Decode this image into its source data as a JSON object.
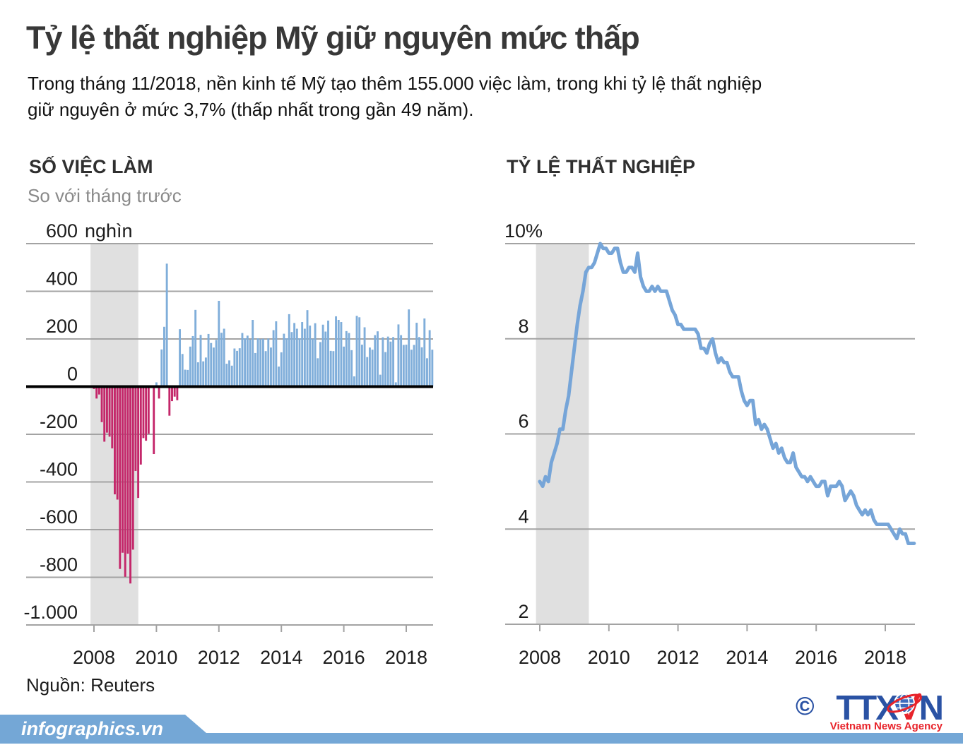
{
  "page": {
    "title": "Tỷ lệ thất nghiệp Mỹ giữ nguyên mức thấp",
    "subtitle_lines": [
      "Trong tháng 11/2018, nền kinh tế Mỹ tạo thêm 155.000 việc làm, trong khi tỷ lệ thất nghiệp",
      "giữ nguyên ở mức 3,7% (thấp nhất trong gần 49 năm)."
    ],
    "source": "Nguồn: Reuters"
  },
  "footer": {
    "watermark": "infographics.vn",
    "banner_color": "#74a7d6"
  },
  "branding": {
    "copyright_symbol": "©",
    "logo_part_blue_left": "TTX",
    "logo_part_red": "V",
    "logo_part_blue_right": "N",
    "tagline": "Vietnam News Agency",
    "logo_blue": "#2a52a4",
    "logo_red": "#e8232a"
  },
  "chart_data": [
    {
      "type": "bar",
      "title": "SỐ VIỆC LÀM",
      "subtitle": "So với tháng trước",
      "y_unit": "nghìn",
      "x_start": "2008-01",
      "x_end": "2018-11",
      "x_ticks": [
        2008,
        2010,
        2012,
        2014,
        2016,
        2018
      ],
      "y_ticks": [
        600,
        400,
        200,
        0,
        -200,
        -400,
        -600,
        -800,
        -1000
      ],
      "y_tick_labels": [
        "600",
        "400",
        "200",
        "0",
        "-200",
        "-400",
        "-600",
        "-800",
        "-1.000"
      ],
      "ylim": [
        -1000,
        600
      ],
      "grid": true,
      "recession_band_years": [
        2007.89,
        2009.42
      ],
      "colors": {
        "positive": "#80aeda",
        "negative": "#c4276a",
        "zero_line": "#000000",
        "band": "#e0e0e0",
        "grid": "#a3a3a3"
      },
      "values_thousands": [
        -10,
        -50,
        -33,
        -149,
        -231,
        -193,
        -210,
        -259,
        -452,
        -474,
        -765,
        -697,
        -798,
        -701,
        -826,
        -684,
        -354,
        -467,
        -327,
        -216,
        -227,
        -198,
        -6,
        -283,
        18,
        -50,
        156,
        251,
        516,
        -122,
        -61,
        -42,
        -57,
        241,
        137,
        71,
        70,
        168,
        212,
        322,
        102,
        217,
        106,
        122,
        221,
        183,
        164,
        196,
        360,
        226,
        243,
        96,
        110,
        88,
        160,
        150,
        161,
        225,
        203,
        214,
        197,
        280,
        141,
        203,
        199,
        201,
        149,
        202,
        164,
        237,
        274,
        84,
        144,
        222,
        203,
        304,
        229,
        267,
        243,
        203,
        271,
        243,
        321,
        256,
        201,
        266,
        119,
        187,
        260,
        231,
        277,
        150,
        149,
        295,
        280,
        271,
        168,
        233,
        225,
        153,
        43,
        297,
        291,
        176,
        249,
        124,
        164,
        155,
        216,
        232,
        50,
        207,
        145,
        210,
        189,
        208,
        18,
        261,
        216,
        175,
        176,
        324,
        155,
        175,
        268,
        208,
        165,
        286,
        119,
        237,
        155
      ]
    },
    {
      "type": "line",
      "title": "TỶ LỆ THẤT NGHIỆP",
      "y_unit": "%",
      "x_start": "2008-01",
      "x_end": "2018-11",
      "x_ticks": [
        2008,
        2010,
        2012,
        2014,
        2016,
        2018
      ],
      "y_ticks": [
        10,
        8,
        6,
        4,
        2
      ],
      "y_tick_labels": [
        "10%",
        "8",
        "6",
        "4",
        "2"
      ],
      "ylim": [
        2,
        10
      ],
      "grid": true,
      "recession_band_years": [
        2007.89,
        2009.42
      ],
      "colors": {
        "line": "#76a5d8",
        "band": "#e0e0e0",
        "grid": "#a3a3a3"
      },
      "values_percent": [
        5.0,
        4.9,
        5.1,
        5.0,
        5.4,
        5.6,
        5.8,
        6.1,
        6.1,
        6.5,
        6.8,
        7.3,
        7.8,
        8.3,
        8.7,
        9.0,
        9.4,
        9.5,
        9.5,
        9.6,
        9.8,
        10.0,
        9.9,
        9.9,
        9.8,
        9.8,
        9.9,
        9.9,
        9.6,
        9.4,
        9.4,
        9.5,
        9.5,
        9.4,
        9.8,
        9.3,
        9.1,
        9.0,
        9.0,
        9.1,
        9.0,
        9.1,
        9.0,
        9.0,
        9.0,
        8.8,
        8.6,
        8.5,
        8.3,
        8.3,
        8.2,
        8.2,
        8.2,
        8.2,
        8.2,
        8.1,
        7.8,
        7.8,
        7.7,
        7.9,
        8.0,
        7.7,
        7.5,
        7.6,
        7.5,
        7.5,
        7.3,
        7.2,
        7.2,
        7.2,
        6.9,
        6.7,
        6.6,
        6.7,
        6.7,
        6.2,
        6.3,
        6.1,
        6.2,
        6.1,
        5.9,
        5.7,
        5.8,
        5.6,
        5.7,
        5.5,
        5.4,
        5.4,
        5.6,
        5.3,
        5.2,
        5.1,
        5.1,
        5.0,
        5.1,
        5.0,
        4.9,
        4.9,
        5.0,
        5.0,
        4.7,
        4.9,
        4.9,
        4.9,
        5.0,
        4.9,
        4.6,
        4.7,
        4.8,
        4.7,
        4.5,
        4.4,
        4.3,
        4.4,
        4.3,
        4.4,
        4.2,
        4.1,
        4.1,
        4.1,
        4.1,
        4.1,
        4.0,
        3.9,
        3.8,
        4.0,
        3.9,
        3.9,
        3.7,
        3.7,
        3.7
      ]
    }
  ]
}
